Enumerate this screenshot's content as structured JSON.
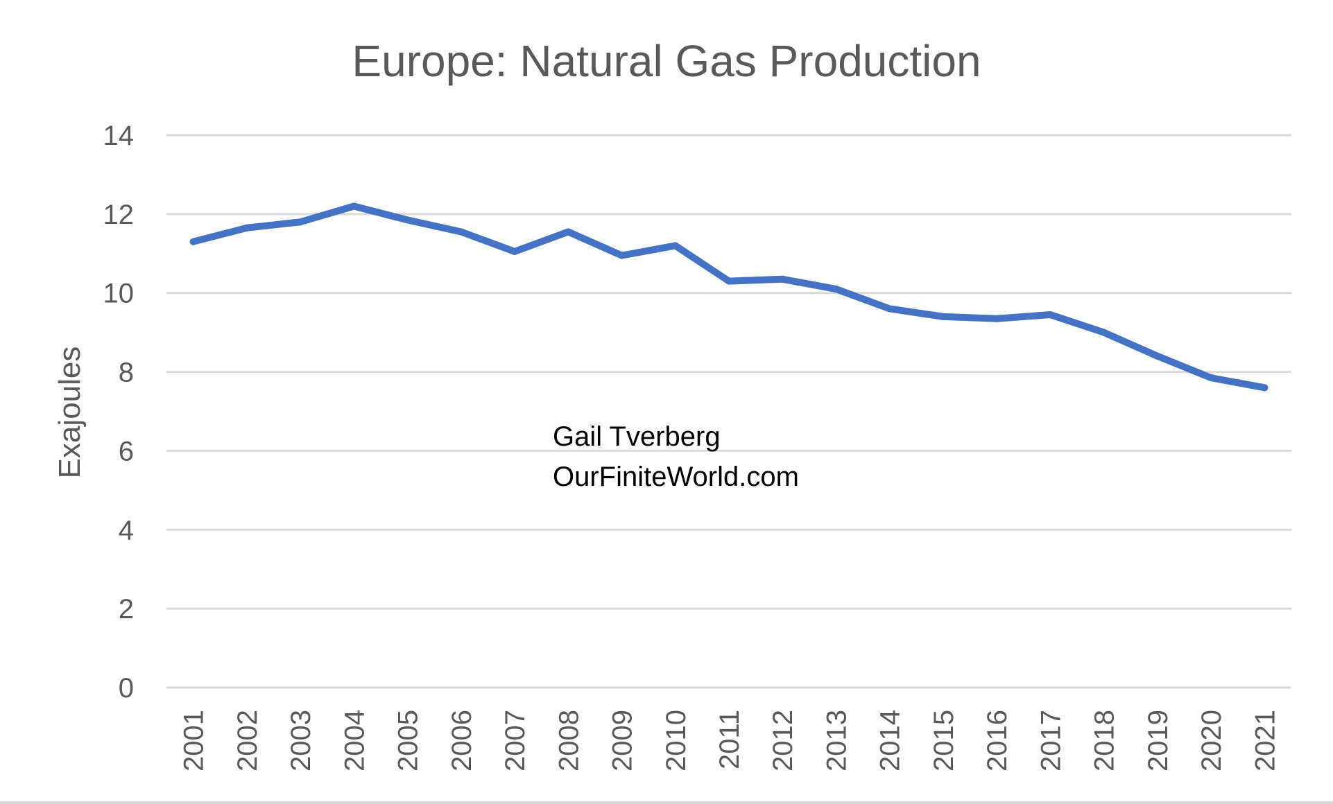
{
  "chart_data": {
    "type": "line",
    "title": "Europe: Natural Gas Production",
    "xlabel": "",
    "ylabel": "Exajoules",
    "ylim": [
      0,
      14
    ],
    "yticks": [
      "0",
      "2",
      "4",
      "6",
      "8",
      "10",
      "12",
      "14"
    ],
    "grid": true,
    "categories": [
      "2001",
      "2002",
      "2003",
      "2004",
      "2005",
      "2006",
      "2007",
      "2008",
      "2009",
      "2010",
      "2011",
      "2012",
      "2013",
      "2014",
      "2015",
      "2016",
      "2017",
      "2018",
      "2019",
      "2020",
      "2021"
    ],
    "series": [
      {
        "values": [
          11.3,
          11.65,
          11.8,
          12.2,
          11.85,
          11.55,
          11.05,
          11.55,
          10.95,
          11.2,
          10.3,
          10.35,
          10.1,
          9.6,
          9.4,
          9.35,
          9.45,
          9.0,
          8.4,
          7.85,
          7.6
        ]
      }
    ],
    "annotations": [
      "Gail Tverberg",
      "OurFiniteWorld.com"
    ],
    "colors": {
      "line": "#4472c4",
      "grid": "#d9d9d9",
      "text": "#595959"
    }
  }
}
